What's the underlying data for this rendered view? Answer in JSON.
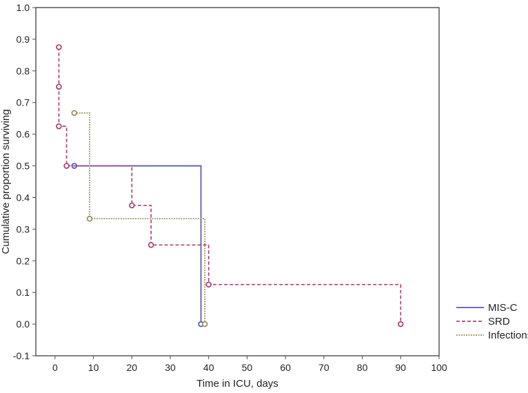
{
  "chart_data": {
    "type": "line",
    "step": true,
    "title": "",
    "xlabel": "Time in ICU, days",
    "ylabel": "Cumulative proportion surviving",
    "xlim": [
      -5,
      100
    ],
    "ylim": [
      -0.1,
      1.0
    ],
    "xticks": [
      0,
      10,
      20,
      30,
      40,
      50,
      60,
      70,
      80,
      90,
      100
    ],
    "yticks": [
      -0.1,
      0.0,
      0.1,
      0.2,
      0.3,
      0.4,
      0.5,
      0.6,
      0.7,
      0.8,
      0.9,
      1.0
    ],
    "xtick_labels": [
      "0",
      "10",
      "20",
      "30",
      "40",
      "50",
      "60",
      "70",
      "80",
      "90",
      "100"
    ],
    "ytick_labels": [
      "-0.1",
      "0.0",
      "0.1",
      "0.2",
      "0.3",
      "0.4",
      "0.5",
      "0.6",
      "0.7",
      "0.8",
      "0.9",
      "1.0"
    ],
    "grid": true,
    "legend_position": "bottom-right-outside",
    "series": [
      {
        "name": "MIS-C",
        "color": "#5a5ab8",
        "dash": "solid",
        "line_start": [
          5,
          0.5
        ],
        "points": [
          {
            "x": 5,
            "y": 0.5
          },
          {
            "x": 38,
            "y": 0.0
          }
        ]
      },
      {
        "name": "SRD",
        "color": "#a8467a",
        "dash": "dashed",
        "line_start": [
          1,
          0.875
        ],
        "points": [
          {
            "x": 1,
            "y": 0.875
          },
          {
            "x": 1,
            "y": 0.75
          },
          {
            "x": 1,
            "y": 0.625
          },
          {
            "x": 3,
            "y": 0.5
          },
          {
            "x": 20,
            "y": 0.375
          },
          {
            "x": 25,
            "y": 0.25
          },
          {
            "x": 40,
            "y": 0.125
          },
          {
            "x": 90,
            "y": 0.0
          }
        ]
      },
      {
        "name": "Infections",
        "color": "#9b9060",
        "dash": "dotted",
        "line_start": [
          5,
          0.667
        ],
        "points": [
          {
            "x": 5,
            "y": 0.667
          },
          {
            "x": 9,
            "y": 0.333
          },
          {
            "x": 39,
            "y": 0.0
          }
        ]
      }
    ]
  }
}
